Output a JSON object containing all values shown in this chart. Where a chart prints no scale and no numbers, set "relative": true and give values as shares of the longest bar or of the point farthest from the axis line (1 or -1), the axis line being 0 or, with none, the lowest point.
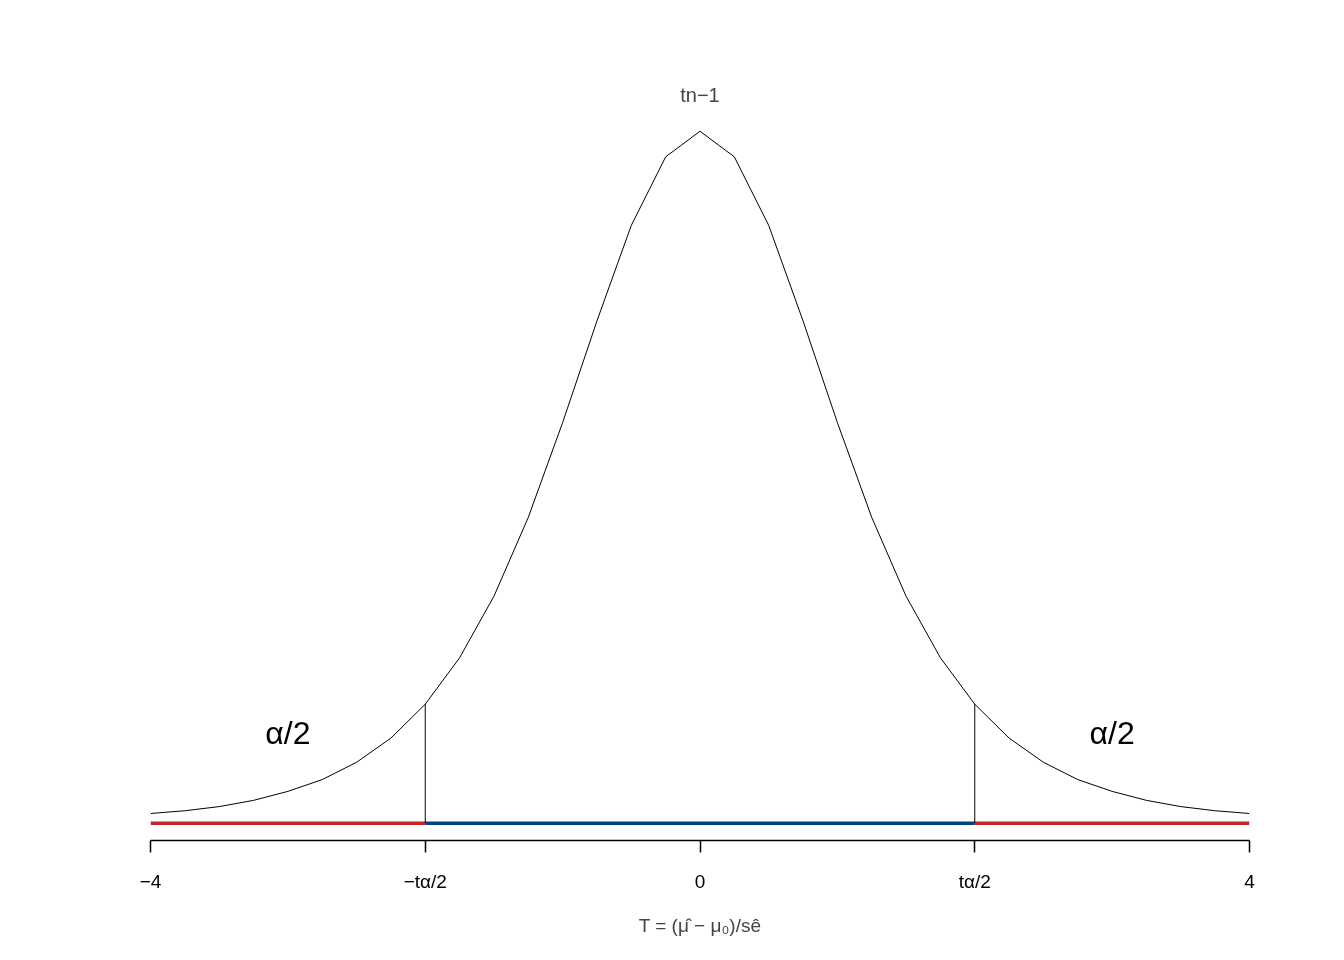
{
  "chart_data": {
    "type": "line",
    "relative": true,
    "title": "tn−1",
    "xlabel": "T = (μ̂ − μ₀)/sê",
    "xlim": [
      -4,
      4
    ],
    "xticks": [
      -4,
      {
        "value": -2,
        "label": "−tα/2"
      },
      0,
      {
        "value": 2,
        "label": "tα/2"
      },
      4
    ],
    "grid": false,
    "series": [
      {
        "color": "#000000",
        "x": [
          -4,
          -3.75,
          -3.5,
          -3.25,
          -3,
          -2.75,
          -2.5,
          -2.25,
          -2,
          -1.75,
          -1.5,
          -1.25,
          -1,
          -0.75,
          -0.5,
          -0.25,
          0,
          0.25,
          0.5,
          0.75,
          1,
          1.25,
          1.5,
          1.75,
          2,
          2.25,
          2.5,
          2.75,
          3,
          3.25,
          3.5,
          3.75,
          4
        ],
        "values": [
          0.014,
          0.018,
          0.024,
          0.033,
          0.046,
          0.063,
          0.088,
          0.123,
          0.172,
          0.239,
          0.328,
          0.442,
          0.579,
          0.726,
          0.864,
          0.963,
          1,
          0.963,
          0.864,
          0.726,
          0.579,
          0.442,
          0.328,
          0.239,
          0.172,
          0.123,
          0.088,
          0.063,
          0.046,
          0.033,
          0.024,
          0.018,
          0.014
        ]
      },
      {
        "color": "#c1272d",
        "x": [
          -4,
          -2
        ],
        "values": [
          0,
          0
        ]
      },
      {
        "color": "#00457c",
        "x": [
          -2,
          2
        ],
        "values": [
          0,
          0
        ]
      },
      {
        "color": "#c1272d",
        "x": [
          2,
          4
        ],
        "values": [
          0,
          0
        ]
      }
    ],
    "ref_lines": [
      {
        "axis": "x",
        "value": -2,
        "color": "#000000"
      },
      {
        "axis": "x",
        "value": 2,
        "color": "#000000"
      }
    ],
    "annotations": [
      "α/2",
      "α/2"
    ]
  }
}
